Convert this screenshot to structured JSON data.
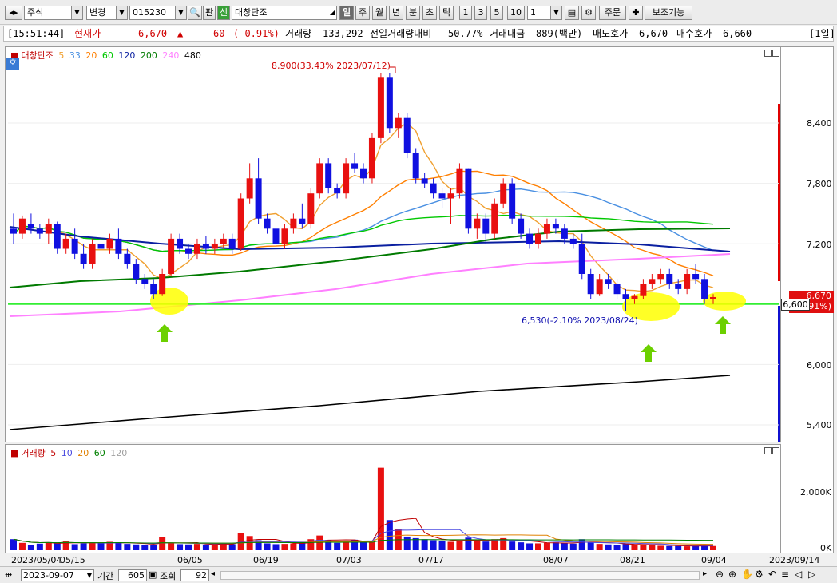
{
  "toolbar": {
    "market_type": "주식",
    "change_label": "변경",
    "stock_code": "015230",
    "pan_label": "판",
    "sin_label": "신",
    "stock_name": "대창단조",
    "periods": [
      "일",
      "주",
      "월",
      "년",
      "분",
      "초",
      "틱"
    ],
    "selected_period": "일",
    "numbers": [
      "1",
      "3",
      "5",
      "10"
    ],
    "interval_value": "1",
    "order_label": "주문",
    "aux_label": "보조기능"
  },
  "info": {
    "time": "[15:51:44]",
    "current_label": "현재가",
    "price": "6,670",
    "arrow": "▲",
    "change": "60",
    "change_pct": "( 0.91%)",
    "volume_label": "거래량",
    "volume": "133,292",
    "prev_ratio_label": "전일거래량대비",
    "prev_ratio": "50.77%",
    "amount_label": "거래대금",
    "amount": "889(백만)",
    "ask_label": "매도호가",
    "ask": "6,670",
    "bid_label": "매수호가",
    "bid": "6,660",
    "period_tag": "[1일]"
  },
  "price_panel": {
    "badge": "호",
    "name": "대창단조",
    "ma_legend": [
      {
        "label": "5",
        "color": "#f0a030"
      },
      {
        "label": "33",
        "color": "#4a90e2"
      },
      {
        "label": "20",
        "color": "#ff7f00"
      },
      {
        "label": "60",
        "color": "#00c800"
      },
      {
        "label": "120",
        "color": "#0a1fa0"
      },
      {
        "label": "200",
        "color": "#007a00"
      },
      {
        "label": "240",
        "color": "#ff80ff"
      },
      {
        "label": "480",
        "color": "#000000"
      }
    ],
    "y_ticks": [
      "8,400",
      "7,800",
      "7,200",
      "6,000",
      "5,400"
    ],
    "high_annotation": "8,900(33.43% 2023/07/12)",
    "low_annotation": "6,530(-2.10% 2023/08/24)",
    "current_tag": "6,670",
    "current_pct_tag": ".91%)",
    "cursor_tag": "6,600"
  },
  "volume_panel": {
    "name": "거래량",
    "ma_legend": [
      {
        "label": "5",
        "color": "#c00000"
      },
      {
        "label": "10",
        "color": "#4a4ae0"
      },
      {
        "label": "20",
        "color": "#e08000"
      },
      {
        "label": "60",
        "color": "#008000"
      },
      {
        "label": "120",
        "color": "#a0a0a0"
      }
    ],
    "y_ticks": [
      "2,000K",
      "0K"
    ]
  },
  "x_labels": [
    "2023/05/04",
    "05/15",
    "06/05",
    "06/19",
    "07/03",
    "07/17",
    "08/07",
    "08/21",
    "09/04",
    "2023/09/14"
  ],
  "bottom": {
    "date": "2023-09-07",
    "period_label": "기간",
    "period_value": "605",
    "query_label": "조회",
    "query_value": "92"
  },
  "chart_data": {
    "type": "candlestick",
    "title": "대창단조",
    "ylim": [
      5300,
      9300
    ],
    "y_ticks": [
      5400,
      6000,
      7200,
      7800,
      8400
    ],
    "support_line": 6600,
    "high": {
      "value": 8900,
      "date": "2023/07/12"
    },
    "low": {
      "value": 6530,
      "date": "2023/08/24"
    },
    "candles": [
      [
        7350,
        7500,
        7200,
        7300
      ],
      [
        7300,
        7480,
        7250,
        7450
      ],
      [
        7400,
        7500,
        7300,
        7350
      ],
      [
        7350,
        7400,
        7250,
        7300
      ],
      [
        7300,
        7450,
        7200,
        7400
      ],
      [
        7400,
        7420,
        7100,
        7150
      ],
      [
        7150,
        7300,
        7100,
        7250
      ],
      [
        7250,
        7350,
        7050,
        7100
      ],
      [
        7100,
        7200,
        6950,
        7000
      ],
      [
        7000,
        7250,
        6950,
        7200
      ],
      [
        7200,
        7250,
        7050,
        7150
      ],
      [
        7150,
        7300,
        7100,
        7250
      ],
      [
        7250,
        7350,
        7050,
        7100
      ],
      [
        7100,
        7150,
        6950,
        7000
      ],
      [
        7000,
        7050,
        6800,
        6850
      ],
      [
        6850,
        6900,
        6750,
        6800
      ],
      [
        6800,
        6850,
        6650,
        6700
      ],
      [
        6700,
        6950,
        6680,
        6900
      ],
      [
        6900,
        7300,
        6880,
        7250
      ],
      [
        7250,
        7300,
        7100,
        7150
      ],
      [
        7150,
        7200,
        7050,
        7100
      ],
      [
        7100,
        7250,
        7050,
        7200
      ],
      [
        7200,
        7280,
        7100,
        7150
      ],
      [
        7150,
        7250,
        7100,
        7200
      ],
      [
        7200,
        7300,
        7150,
        7250
      ],
      [
        7250,
        7300,
        7100,
        7150
      ],
      [
        7150,
        7700,
        7130,
        7650
      ],
      [
        7650,
        8000,
        7600,
        7850
      ],
      [
        7850,
        8050,
        7400,
        7450
      ],
      [
        7450,
        7500,
        7300,
        7350
      ],
      [
        7350,
        7400,
        7150,
        7200
      ],
      [
        7200,
        7400,
        7150,
        7350
      ],
      [
        7350,
        7500,
        7300,
        7450
      ],
      [
        7450,
        7600,
        7350,
        7400
      ],
      [
        7400,
        7750,
        7350,
        7700
      ],
      [
        7700,
        8050,
        7650,
        8000
      ],
      [
        8000,
        8050,
        7700,
        7750
      ],
      [
        7750,
        7800,
        7650,
        7700
      ],
      [
        7700,
        8050,
        7650,
        8000
      ],
      [
        8000,
        8100,
        7900,
        7950
      ],
      [
        7950,
        8000,
        7800,
        7850
      ],
      [
        7850,
        8300,
        7800,
        8250
      ],
      [
        8250,
        8900,
        8200,
        8850
      ],
      [
        8850,
        8900,
        8300,
        8350
      ],
      [
        8350,
        8500,
        8250,
        8450
      ],
      [
        8450,
        8500,
        8050,
        8100
      ],
      [
        8100,
        8150,
        7800,
        7850
      ],
      [
        7850,
        7900,
        7750,
        7800
      ],
      [
        7800,
        7850,
        7650,
        7700
      ],
      [
        7700,
        7750,
        7550,
        7650
      ],
      [
        7650,
        7750,
        7400,
        7700
      ],
      [
        7700,
        8000,
        7650,
        7950
      ],
      [
        7950,
        7950,
        7300,
        7350
      ],
      [
        7350,
        7500,
        7250,
        7450
      ],
      [
        7450,
        7500,
        7200,
        7300
      ],
      [
        7300,
        7650,
        7250,
        7600
      ],
      [
        7600,
        7850,
        7550,
        7800
      ],
      [
        7800,
        7850,
        7400,
        7450
      ],
      [
        7450,
        7500,
        7250,
        7300
      ],
      [
        7300,
        7350,
        7150,
        7200
      ],
      [
        7200,
        7350,
        7150,
        7300
      ],
      [
        7300,
        7450,
        7250,
        7400
      ],
      [
        7400,
        7450,
        7300,
        7350
      ],
      [
        7350,
        7400,
        7200,
        7250
      ],
      [
        7250,
        7300,
        7150,
        7200
      ],
      [
        7200,
        7300,
        6850,
        6900
      ],
      [
        6900,
        6950,
        6650,
        6700
      ],
      [
        6700,
        6900,
        6680,
        6850
      ],
      [
        6850,
        6900,
        6750,
        6800
      ],
      [
        6800,
        6850,
        6650,
        6700
      ],
      [
        6700,
        6750,
        6530,
        6650
      ],
      [
        6650,
        6700,
        6600,
        6680
      ],
      [
        6680,
        6850,
        6650,
        6800
      ],
      [
        6800,
        6900,
        6750,
        6850
      ],
      [
        6850,
        6950,
        6800,
        6900
      ],
      [
        6900,
        6950,
        6750,
        6800
      ],
      [
        6800,
        6850,
        6700,
        6750
      ],
      [
        6750,
        6950,
        6700,
        6900
      ],
      [
        6900,
        7000,
        6800,
        6850
      ],
      [
        6850,
        6900,
        6600,
        6650
      ],
      [
        6650,
        6700,
        6600,
        6670
      ]
    ],
    "volume_max": 3200,
    "volumes": [
      420,
      280,
      210,
      250,
      300,
      260,
      360,
      230,
      260,
      300,
      270,
      320,
      280,
      240,
      220,
      210,
      200,
      500,
      260,
      230,
      220,
      240,
      210,
      230,
      260,
      230,
      650,
      540,
      380,
      260,
      230,
      240,
      260,
      300,
      420,
      560,
      390,
      280,
      340,
      400,
      300,
      320,
      3150,
      1150,
      800,
      520,
      460,
      420,
      380,
      340,
      320,
      360,
      480,
      380,
      330,
      420,
      460,
      330,
      300,
      260,
      260,
      280,
      300,
      280,
      250,
      420,
      300,
      240,
      220,
      200,
      240,
      220,
      200,
      190,
      170,
      160,
      160,
      150,
      160,
      180,
      160
    ]
  }
}
